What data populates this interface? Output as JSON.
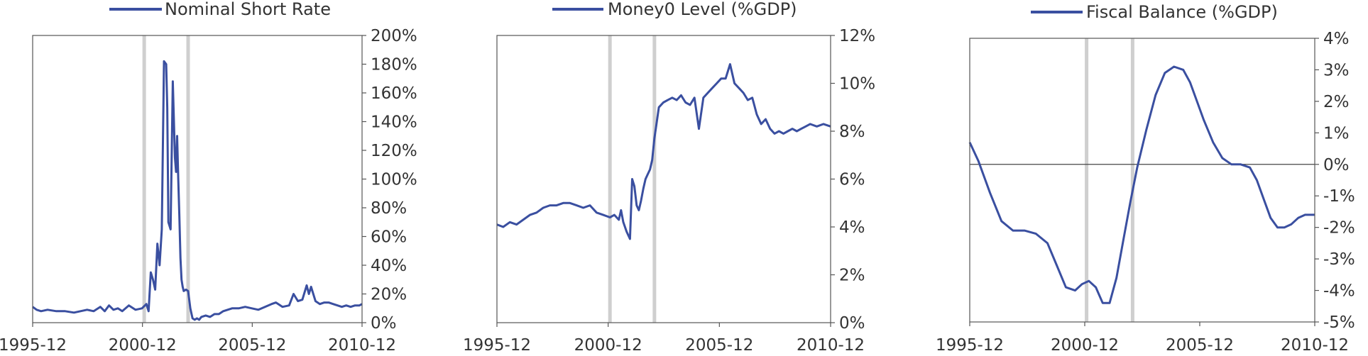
{
  "colors": {
    "series": "#3a4fa0",
    "shade": "#cfcfcf",
    "frame": "#555555"
  },
  "chart_data": [
    {
      "type": "line",
      "title": "",
      "xlabel": "",
      "ylabel": "",
      "legend": {
        "label": "Nominal Short Rate",
        "placement": "top"
      },
      "x_range": [
        1995.92,
        2010.92
      ],
      "x_ticks": [
        "1995-12",
        "2000-12",
        "2005-12",
        "2010-12"
      ],
      "y_range": [
        0,
        200
      ],
      "y_ticks": [
        "0%",
        "20%",
        "40%",
        "60%",
        "80%",
        "100%",
        "120%",
        "140%",
        "160%",
        "180%",
        "200%"
      ],
      "y_axis_side": "right",
      "grid": false,
      "shaded_periods_x": [
        2001.0,
        2003.0
      ],
      "series": [
        {
          "name": "Nominal Short Rate",
          "x": [
            1995.92,
            1996.1,
            1996.3,
            1996.6,
            1997.0,
            1997.4,
            1997.8,
            1998.1,
            1998.4,
            1998.7,
            1999.0,
            1999.2,
            1999.4,
            1999.6,
            1999.8,
            2000.0,
            2000.3,
            2000.6,
            2000.9,
            2001.1,
            2001.2,
            2001.3,
            2001.4,
            2001.5,
            2001.6,
            2001.7,
            2001.8,
            2001.9,
            2002.0,
            2002.05,
            2002.1,
            2002.2,
            2002.3,
            2002.4,
            2002.45,
            2002.5,
            2002.55,
            2002.6,
            2002.65,
            2002.7,
            2002.75,
            2002.8,
            2002.9,
            2003.0,
            2003.1,
            2003.2,
            2003.3,
            2003.4,
            2003.5,
            2003.6,
            2003.8,
            2004.0,
            2004.2,
            2004.4,
            2004.6,
            2004.8,
            2005.0,
            2005.3,
            2005.6,
            2005.9,
            2006.2,
            2006.5,
            2006.8,
            2007.0,
            2007.3,
            2007.6,
            2007.8,
            2008.0,
            2008.2,
            2008.4,
            2008.5,
            2008.6,
            2008.8,
            2009.0,
            2009.2,
            2009.4,
            2009.6,
            2009.8,
            2010.0,
            2010.2,
            2010.4,
            2010.6,
            2010.8,
            2010.92
          ],
          "y": [
            11,
            9,
            8,
            9,
            8,
            8,
            7,
            8,
            9,
            8,
            11,
            8,
            12,
            9,
            10,
            8,
            12,
            9,
            10,
            13,
            8,
            35,
            30,
            23,
            55,
            40,
            65,
            182,
            180,
            150,
            70,
            65,
            168,
            115,
            105,
            130,
            100,
            75,
            45,
            30,
            25,
            22,
            23,
            22,
            10,
            3,
            2,
            3,
            2,
            4,
            5,
            4,
            6,
            6,
            8,
            9,
            10,
            10,
            11,
            10,
            9,
            11,
            13,
            14,
            11,
            12,
            20,
            15,
            16,
            26,
            20,
            25,
            15,
            13,
            14,
            14,
            13,
            12,
            11,
            12,
            11,
            12,
            12,
            13
          ]
        }
      ]
    },
    {
      "type": "line",
      "title": "",
      "xlabel": "",
      "ylabel": "",
      "legend": {
        "label": "Money0 Level (%GDP)",
        "placement": "top"
      },
      "x_range": [
        1995.92,
        2010.92
      ],
      "x_ticks": [
        "1995-12",
        "2000-12",
        "2005-12",
        "2010-12"
      ],
      "y_range": [
        0,
        12
      ],
      "y_ticks": [
        "0%",
        "2%",
        "4%",
        "6%",
        "8%",
        "10%",
        "12%"
      ],
      "y_axis_side": "right",
      "grid": false,
      "shaded_periods_x": [
        2001.0,
        2003.0
      ],
      "series": [
        {
          "name": "Money0 Level (%GDP)",
          "x": [
            1995.92,
            1996.2,
            1996.5,
            1996.8,
            1997.1,
            1997.4,
            1997.7,
            1998.0,
            1998.3,
            1998.6,
            1998.9,
            1999.2,
            1999.5,
            1999.8,
            2000.1,
            2000.4,
            2000.7,
            2001.0,
            2001.2,
            2001.4,
            2001.5,
            2001.6,
            2001.75,
            2001.9,
            2002.0,
            2002.1,
            2002.2,
            2002.3,
            2002.4,
            2002.5,
            2002.6,
            2002.7,
            2002.8,
            2002.9,
            2003.0,
            2003.2,
            2003.4,
            2003.6,
            2003.8,
            2004.0,
            2004.2,
            2004.4,
            2004.6,
            2004.8,
            2005.0,
            2005.2,
            2005.4,
            2005.6,
            2005.8,
            2006.0,
            2006.2,
            2006.4,
            2006.6,
            2006.8,
            2007.0,
            2007.2,
            2007.4,
            2007.6,
            2007.8,
            2008.0,
            2008.2,
            2008.4,
            2008.6,
            2008.8,
            2009.0,
            2009.2,
            2009.4,
            2009.6,
            2009.8,
            2010.0,
            2010.3,
            2010.6,
            2010.92
          ],
          "y": [
            4.1,
            4.0,
            4.2,
            4.1,
            4.3,
            4.5,
            4.6,
            4.8,
            4.9,
            4.9,
            5.0,
            5.0,
            4.9,
            4.8,
            4.9,
            4.6,
            4.5,
            4.4,
            4.5,
            4.3,
            4.7,
            4.2,
            3.8,
            3.5,
            6.0,
            5.7,
            4.9,
            4.7,
            5.1,
            5.6,
            6.0,
            6.2,
            6.4,
            6.8,
            7.7,
            9.0,
            9.2,
            9.3,
            9.4,
            9.3,
            9.5,
            9.2,
            9.1,
            9.4,
            8.1,
            9.4,
            9.6,
            9.8,
            10.0,
            10.2,
            10.2,
            10.8,
            10.0,
            9.8,
            9.6,
            9.3,
            9.4,
            8.7,
            8.3,
            8.5,
            8.1,
            7.9,
            8.0,
            7.9,
            8.0,
            8.1,
            8.0,
            8.1,
            8.2,
            8.3,
            8.2,
            8.3,
            8.2
          ]
        }
      ]
    },
    {
      "type": "line",
      "title": "",
      "xlabel": "",
      "ylabel": "",
      "legend": {
        "label": "Fiscal Balance (%GDP)",
        "placement": "top"
      },
      "x_range": [
        1995.92,
        2010.92
      ],
      "x_ticks": [
        "1995-12",
        "2000-12",
        "2005-12",
        "2010-12"
      ],
      "y_range": [
        -5,
        4
      ],
      "y_ticks": [
        "-5%",
        "-4%",
        "-3%",
        "-2%",
        "-1%",
        "0%",
        "1%",
        "2%",
        "3%",
        "4%"
      ],
      "y_axis_side": "right",
      "grid": false,
      "zero_line": true,
      "shaded_periods_x": [
        2001.0,
        2003.0
      ],
      "series": [
        {
          "name": "Fiscal Balance (%GDP)",
          "x": [
            1995.92,
            1996.3,
            1996.8,
            1997.3,
            1997.8,
            1998.3,
            1998.8,
            1999.3,
            1999.7,
            2000.1,
            2000.5,
            2000.8,
            2001.1,
            2001.4,
            2001.7,
            2002.0,
            2002.3,
            2002.6,
            2002.9,
            2003.2,
            2003.6,
            2004.0,
            2004.4,
            2004.8,
            2005.2,
            2005.5,
            2005.8,
            2006.1,
            2006.5,
            2006.9,
            2007.3,
            2007.7,
            2008.1,
            2008.4,
            2008.7,
            2009.0,
            2009.3,
            2009.6,
            2009.9,
            2010.2,
            2010.5,
            2010.92
          ],
          "y": [
            0.7,
            0.1,
            -0.9,
            -1.8,
            -2.1,
            -2.1,
            -2.2,
            -2.5,
            -3.2,
            -3.9,
            -4.0,
            -3.8,
            -3.7,
            -3.9,
            -4.4,
            -4.4,
            -3.6,
            -2.4,
            -1.2,
            -0.1,
            1.1,
            2.2,
            2.9,
            3.1,
            3.0,
            2.6,
            2.0,
            1.4,
            0.7,
            0.2,
            0.0,
            0.0,
            -0.1,
            -0.5,
            -1.1,
            -1.7,
            -2.0,
            -2.0,
            -1.9,
            -1.7,
            -1.6,
            -1.6
          ]
        }
      ]
    }
  ]
}
